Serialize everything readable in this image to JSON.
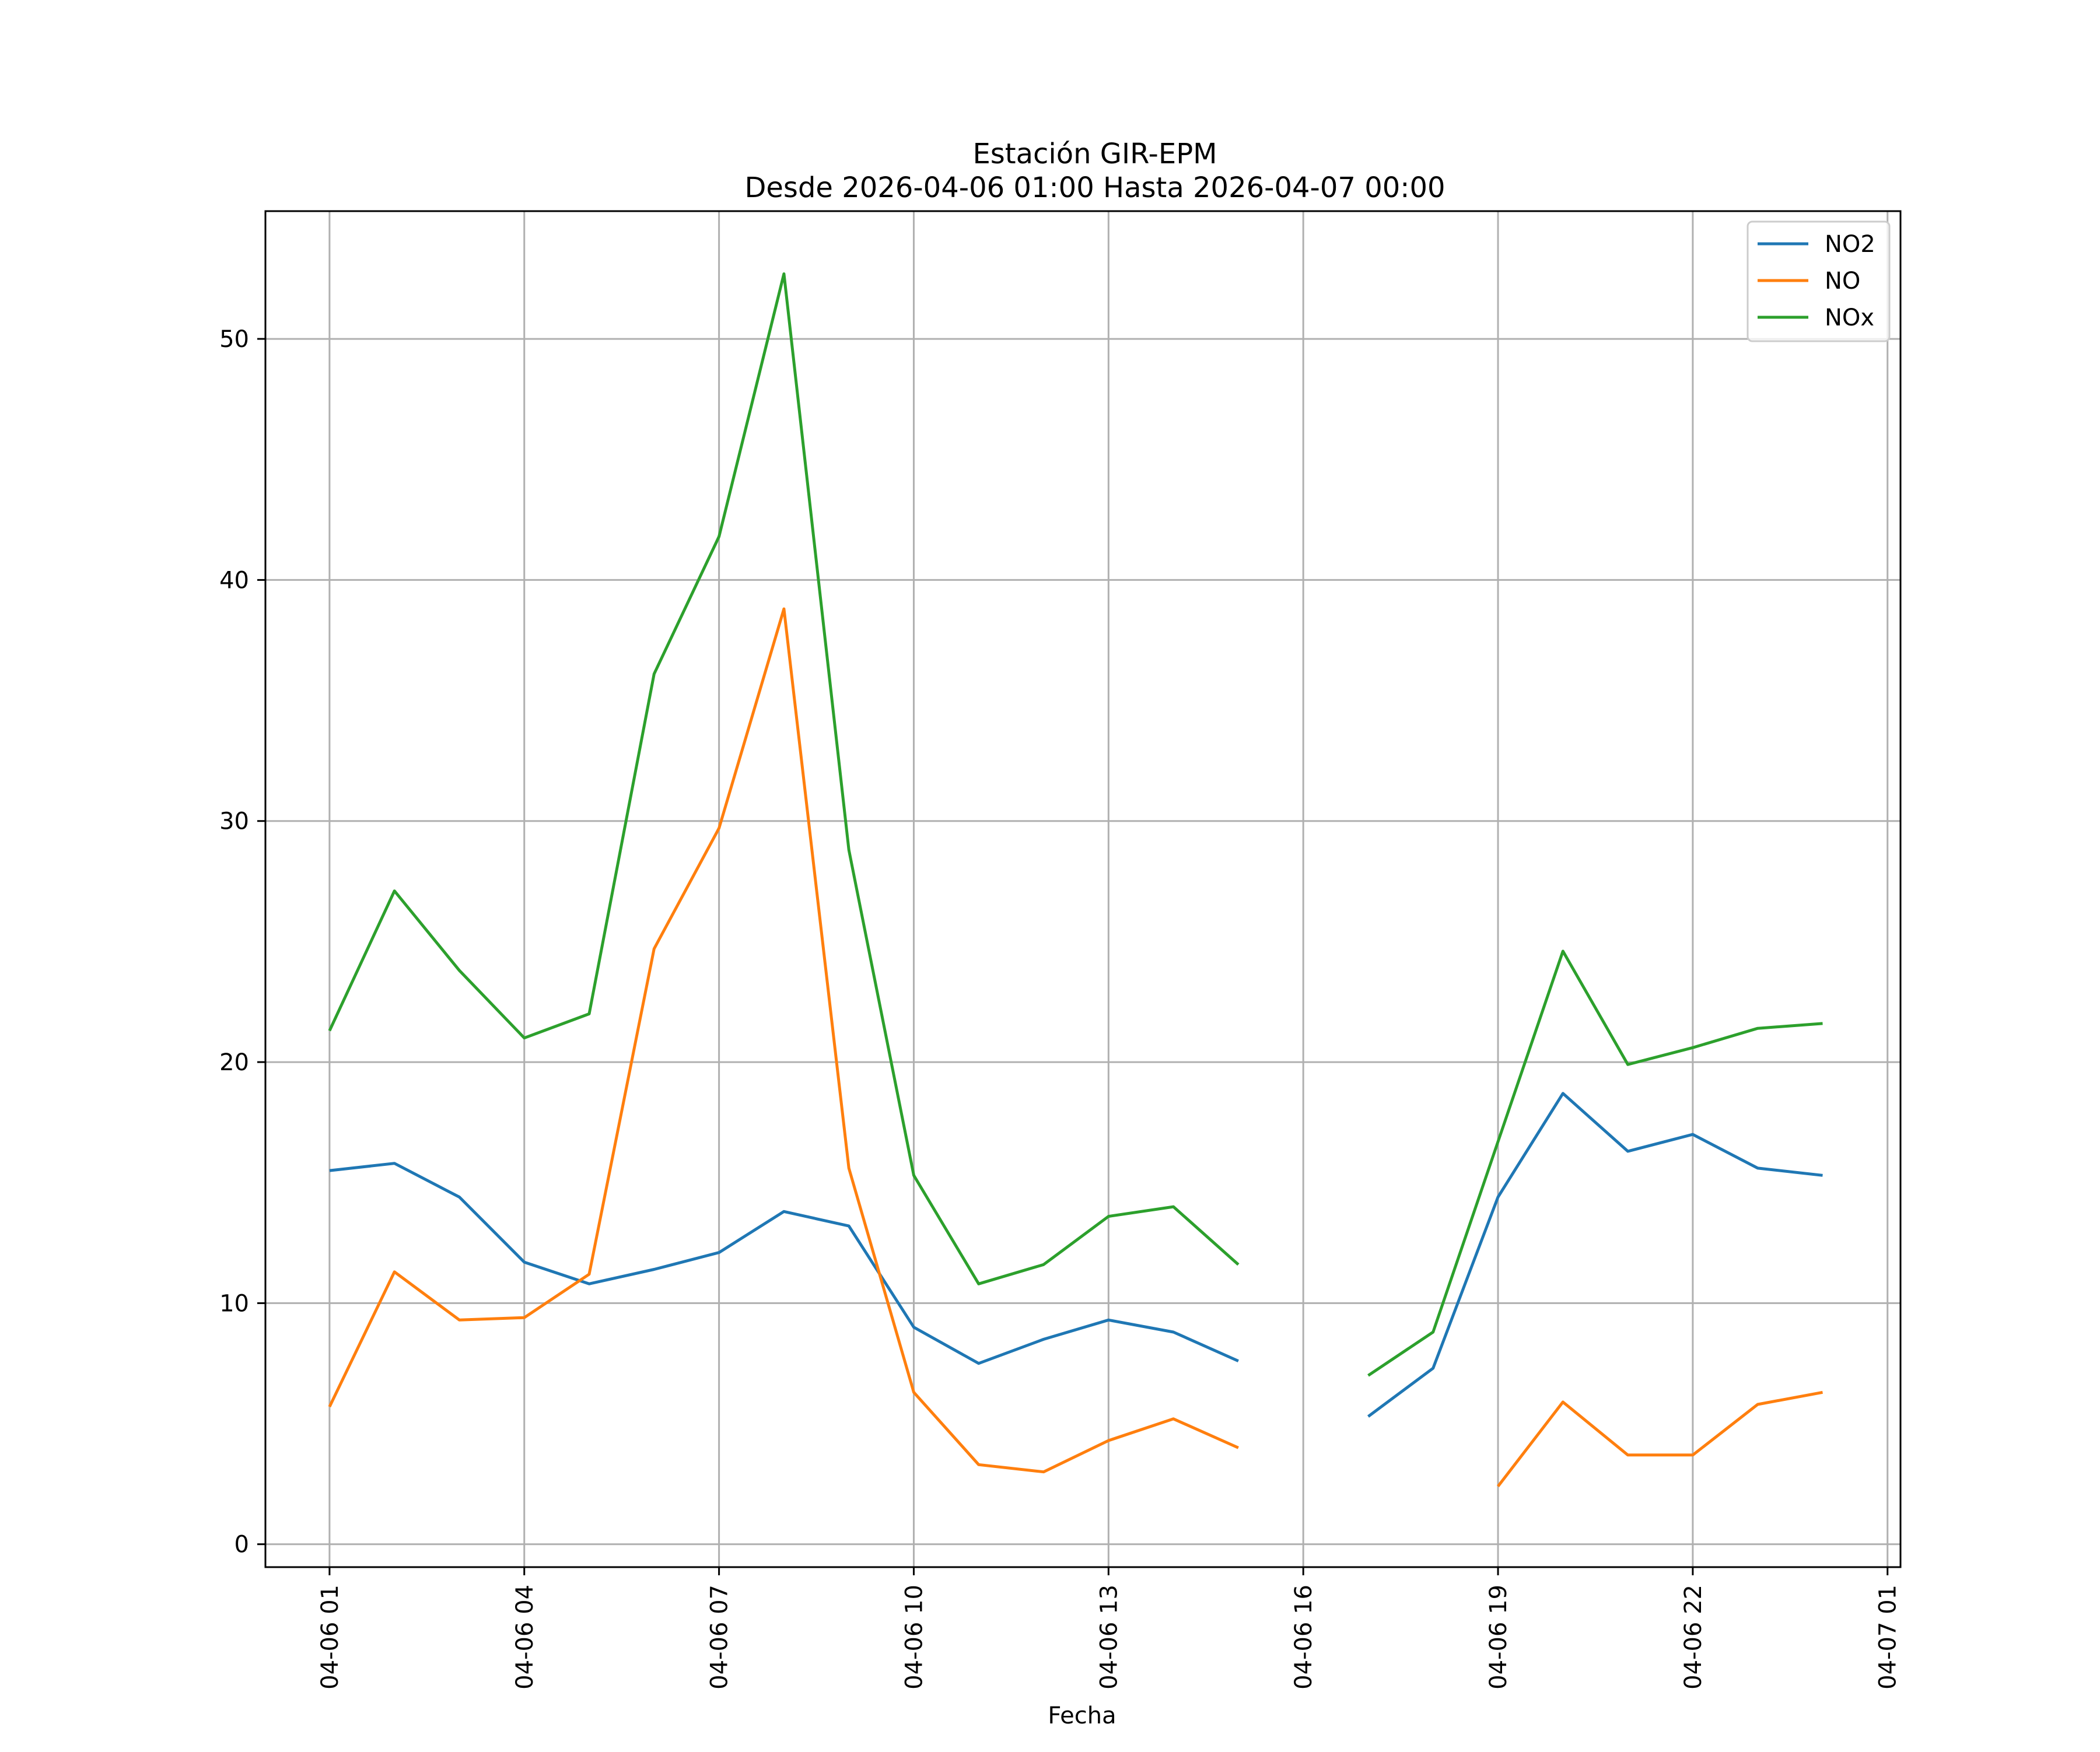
{
  "chart_data": {
    "type": "line",
    "title": "Estación GIR-EPM",
    "subtitle": "Desde 2026-04-06 01:00 Hasta 2026-04-07 00:00",
    "xlabel": "Fecha",
    "ylabel": "",
    "x": [
      "04-06 01",
      "04-06 02",
      "04-06 03",
      "04-06 04",
      "04-06 05",
      "04-06 06",
      "04-06 07",
      "04-06 08",
      "04-06 09",
      "04-06 10",
      "04-06 11",
      "04-06 12",
      "04-06 13",
      "04-06 14",
      "04-06 15",
      "04-06 16",
      "04-06 17",
      "04-06 18",
      "04-06 19",
      "04-06 20",
      "04-06 21",
      "04-06 22",
      "04-06 23",
      "04-07 00"
    ],
    "x_hours": [
      1,
      2,
      3,
      4,
      5,
      6,
      7,
      8,
      9,
      10,
      11,
      12,
      13,
      14,
      15,
      16,
      17,
      18,
      19,
      20,
      21,
      22,
      23,
      24
    ],
    "series": [
      {
        "name": "NO2",
        "color": "#1f77b4",
        "values": [
          15.5,
          15.8,
          14.4,
          11.7,
          10.8,
          11.4,
          12.1,
          13.8,
          13.2,
          9.0,
          7.5,
          8.5,
          9.3,
          8.8,
          7.6,
          null,
          5.3,
          7.3,
          14.4,
          18.7,
          16.3,
          17.0,
          15.6,
          15.3
        ]
      },
      {
        "name": "NO",
        "color": "#ff7f0e",
        "values": [
          5.7,
          11.3,
          9.3,
          9.4,
          11.2,
          24.7,
          29.7,
          38.8,
          15.6,
          6.3,
          3.3,
          3.0,
          4.3,
          5.2,
          4.0,
          null,
          null,
          null,
          2.4,
          5.9,
          3.7,
          3.7,
          5.8,
          6.3
        ]
      },
      {
        "name": "NOx",
        "color": "#2ca02c",
        "values": [
          21.3,
          27.1,
          23.8,
          21.0,
          22.0,
          36.1,
          41.8,
          52.7,
          28.8,
          15.3,
          10.8,
          11.6,
          13.6,
          14.0,
          11.6,
          null,
          7.0,
          8.8,
          16.7,
          24.6,
          19.9,
          20.6,
          21.4,
          21.6
        ]
      }
    ],
    "xticks": [
      "04-06 01",
      "04-06 04",
      "04-06 07",
      "04-06 10",
      "04-06 13",
      "04-06 16",
      "04-06 19",
      "04-06 22",
      "04-07 01"
    ],
    "xtick_hours": [
      1,
      4,
      7,
      10,
      13,
      16,
      19,
      22,
      25
    ],
    "yticks": [
      "0",
      "10",
      "20",
      "30",
      "40",
      "50"
    ],
    "ytick_values": [
      0,
      10,
      20,
      30,
      40,
      50
    ],
    "xlim": [
      0.0125,
      25.2
    ],
    "ylim": [
      -0.95,
      55.3
    ],
    "grid": true,
    "legend_position": "top-right"
  }
}
